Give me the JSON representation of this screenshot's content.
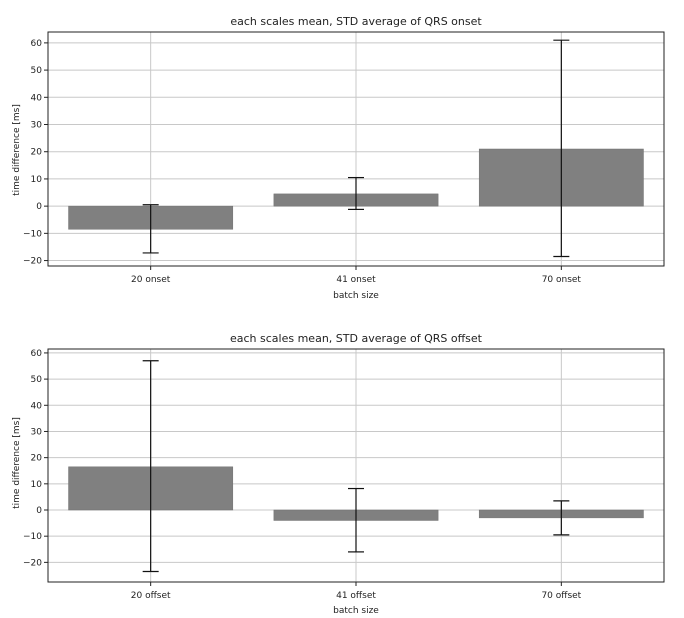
{
  "chart_data": [
    {
      "type": "bar",
      "title": "each scales mean, STD average of QRS onset",
      "xlabel": "batch size",
      "ylabel": "time difference [ms]",
      "categories": [
        "20 onset",
        "41 onset",
        "70 onset"
      ],
      "values": [
        -8.5,
        4.5,
        21.0
      ],
      "error_low": [
        -17.2,
        -1.2,
        -18.5
      ],
      "error_high": [
        0.5,
        10.5,
        61.0
      ],
      "ylim": [
        -22,
        64
      ],
      "yticks": [
        -20,
        -10,
        0,
        10,
        20,
        30,
        40,
        50,
        60
      ],
      "grid": true
    },
    {
      "type": "bar",
      "title": "each scales mean, STD average of QRS offset",
      "xlabel": "batch size",
      "ylabel": "time difference [ms]",
      "categories": [
        "20 offset",
        "41 offset",
        "70 offset"
      ],
      "values": [
        16.5,
        -4.0,
        -3.0
      ],
      "error_low": [
        -23.5,
        -16.0,
        -9.5
      ],
      "error_high": [
        57.0,
        8.2,
        3.5
      ],
      "ylim": [
        -27.5,
        61.5
      ],
      "yticks": [
        -20,
        -10,
        0,
        10,
        20,
        30,
        40,
        50,
        60
      ],
      "grid": true
    }
  ]
}
